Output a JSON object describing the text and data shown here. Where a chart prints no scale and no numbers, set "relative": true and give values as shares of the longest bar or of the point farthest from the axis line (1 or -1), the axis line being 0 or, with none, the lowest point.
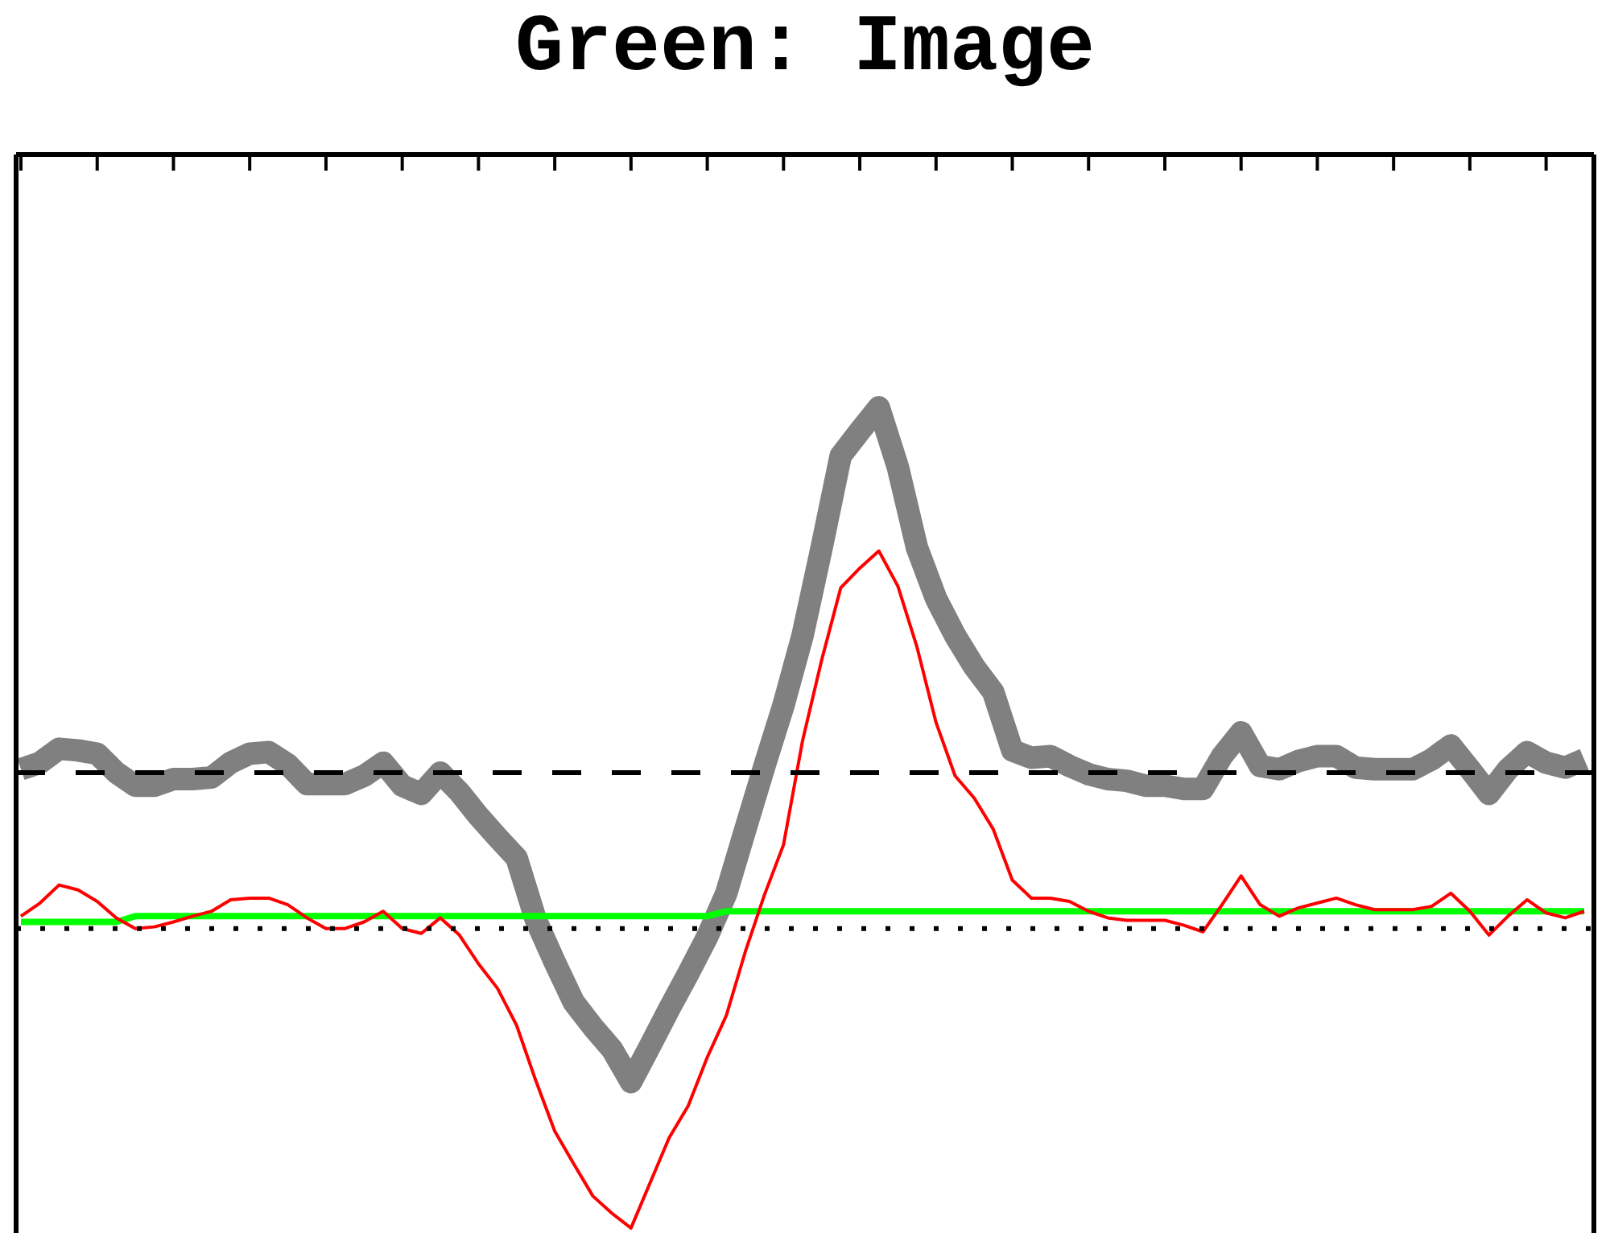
{
  "chart_data": {
    "type": "line",
    "title": "Green: Image",
    "relative": true,
    "line_style": "solid",
    "categories": [
      null,
      null,
      null,
      null,
      null,
      null,
      null,
      null,
      null,
      null,
      null,
      null,
      null,
      null,
      null,
      null,
      null,
      null,
      null,
      null,
      null,
      null,
      null,
      null,
      null,
      null,
      null,
      null,
      null,
      null,
      null,
      null,
      null,
      null,
      null,
      null,
      null,
      null,
      null,
      null,
      null,
      null,
      null,
      null,
      null,
      null,
      null,
      null,
      null,
      null,
      null,
      null,
      null,
      null,
      null,
      null,
      null,
      null,
      null,
      null,
      null,
      null,
      null,
      null,
      null,
      null,
      null,
      null,
      null,
      null,
      null,
      null,
      null,
      null,
      null,
      null,
      null,
      null,
      null,
      null,
      null,
      null,
      null
    ],
    "series": [
      {
        "color": "#808080",
        "values": [
          0.559,
          0.567,
          0.584,
          0.582,
          0.578,
          0.555,
          0.539,
          0.539,
          0.547,
          0.547,
          0.549,
          0.567,
          0.578,
          0.58,
          0.565,
          0.541,
          0.541,
          0.541,
          0.551,
          0.567,
          0.539,
          0.529,
          0.555,
          0.531,
          0.502,
          0.476,
          0.451,
          0.376,
          0.324,
          0.275,
          0.245,
          0.218,
          0.178,
          0.222,
          0.267,
          0.31,
          0.355,
          0.408,
          0.486,
          0.563,
          0.637,
          0.722,
          0.829,
          0.941,
          0.971,
          1.0,
          0.927,
          0.829,
          0.767,
          0.722,
          0.684,
          0.653,
          0.582,
          0.573,
          0.575,
          0.563,
          0.553,
          0.547,
          0.545,
          0.539,
          0.539,
          0.535,
          0.535,
          0.575,
          0.604,
          0.563,
          0.559,
          0.569,
          0.575,
          0.575,
          0.561,
          0.559,
          0.559,
          0.559,
          0.571,
          0.588,
          0.559,
          0.529,
          0.559,
          0.58,
          0.567,
          0.561,
          0.571
        ]
      },
      {
        "color": "#00ff00",
        "values": [
          0.373,
          0.373,
          0.373,
          0.373,
          0.373,
          0.373,
          0.38,
          0.38,
          0.38,
          0.38,
          0.38,
          0.38,
          0.38,
          0.38,
          0.38,
          0.38,
          0.38,
          0.38,
          0.38,
          0.38,
          0.38,
          0.38,
          0.38,
          0.38,
          0.38,
          0.38,
          0.38,
          0.38,
          0.38,
          0.38,
          0.38,
          0.38,
          0.38,
          0.38,
          0.38,
          0.38,
          0.38,
          0.386,
          0.386,
          0.386,
          0.386,
          0.386,
          0.386,
          0.386,
          0.386,
          0.386,
          0.386,
          0.386,
          0.386,
          0.386,
          0.386,
          0.386,
          0.386,
          0.386,
          0.386,
          0.386,
          0.386,
          0.386,
          0.386,
          0.386,
          0.386,
          0.386,
          0.386,
          0.386,
          0.386,
          0.386,
          0.386,
          0.386,
          0.386,
          0.386,
          0.386,
          0.386,
          0.386,
          0.386,
          0.386,
          0.386,
          0.386,
          0.386,
          0.386,
          0.386,
          0.386,
          0.386,
          0.386
        ]
      },
      {
        "color": "#ff0000",
        "values": [
          0.38,
          0.396,
          0.418,
          0.412,
          0.398,
          0.378,
          0.365,
          0.367,
          0.373,
          0.38,
          0.386,
          0.4,
          0.402,
          0.402,
          0.394,
          0.378,
          0.365,
          0.365,
          0.373,
          0.386,
          0.365,
          0.359,
          0.378,
          0.357,
          0.322,
          0.292,
          0.247,
          0.18,
          0.118,
          0.078,
          0.039,
          0.018,
          0,
          0.055,
          0.11,
          0.149,
          0.208,
          0.259,
          0.337,
          0.406,
          0.467,
          0.594,
          0.692,
          0.78,
          0.804,
          0.825,
          0.782,
          0.708,
          0.616,
          0.551,
          0.524,
          0.486,
          0.424,
          0.402,
          0.402,
          0.398,
          0.386,
          0.378,
          0.375,
          0.375,
          0.375,
          0.369,
          0.361,
          0.394,
          0.429,
          0.394,
          0.38,
          0.39,
          0.396,
          0.402,
          0.394,
          0.388,
          0.388,
          0.388,
          0.392,
          0.408,
          0.386,
          0.357,
          0.38,
          0.4,
          0.384,
          0.378,
          0.386
        ]
      }
    ],
    "ref_lines": [
      {
        "axis": "y",
        "value": 0.555,
        "color": "#000000",
        "line_style": "dashed"
      },
      {
        "axis": "y",
        "value": 0.365,
        "color": "#000000",
        "line_style": "dotted"
      }
    ]
  }
}
